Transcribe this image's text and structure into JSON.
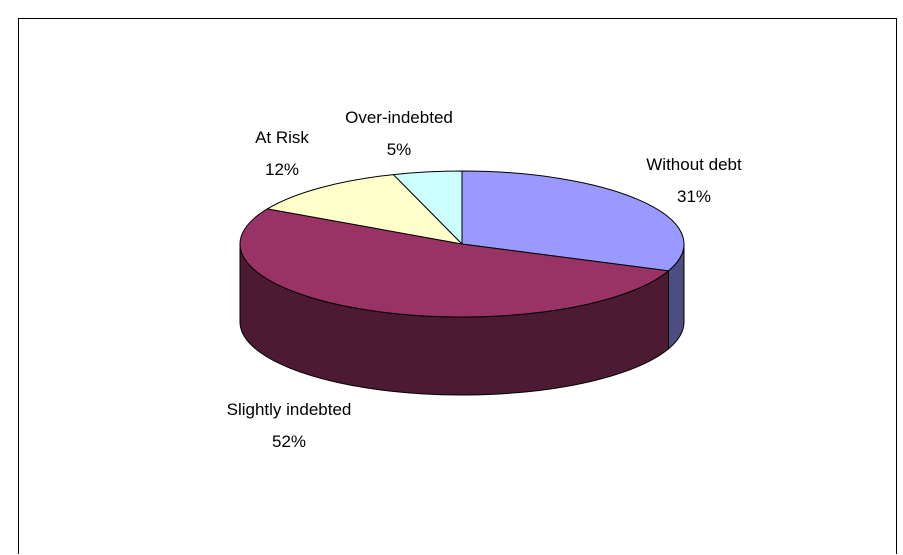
{
  "chart_data": {
    "type": "pie",
    "style": "3d",
    "title": "",
    "legend": "none",
    "labels_show": "category-and-percent",
    "slices": [
      {
        "name": "Without debt",
        "value": 31,
        "label": "31%",
        "color": "#9999ff"
      },
      {
        "name": "Slightly indebted",
        "value": 52,
        "label": "52%",
        "color": "#993366"
      },
      {
        "name": "At Risk",
        "value": 12,
        "label": "12%",
        "color": "#ffffcc"
      },
      {
        "name": "Over-indebted",
        "value": 5,
        "label": "5%",
        "color": "#ccffff"
      }
    ]
  }
}
